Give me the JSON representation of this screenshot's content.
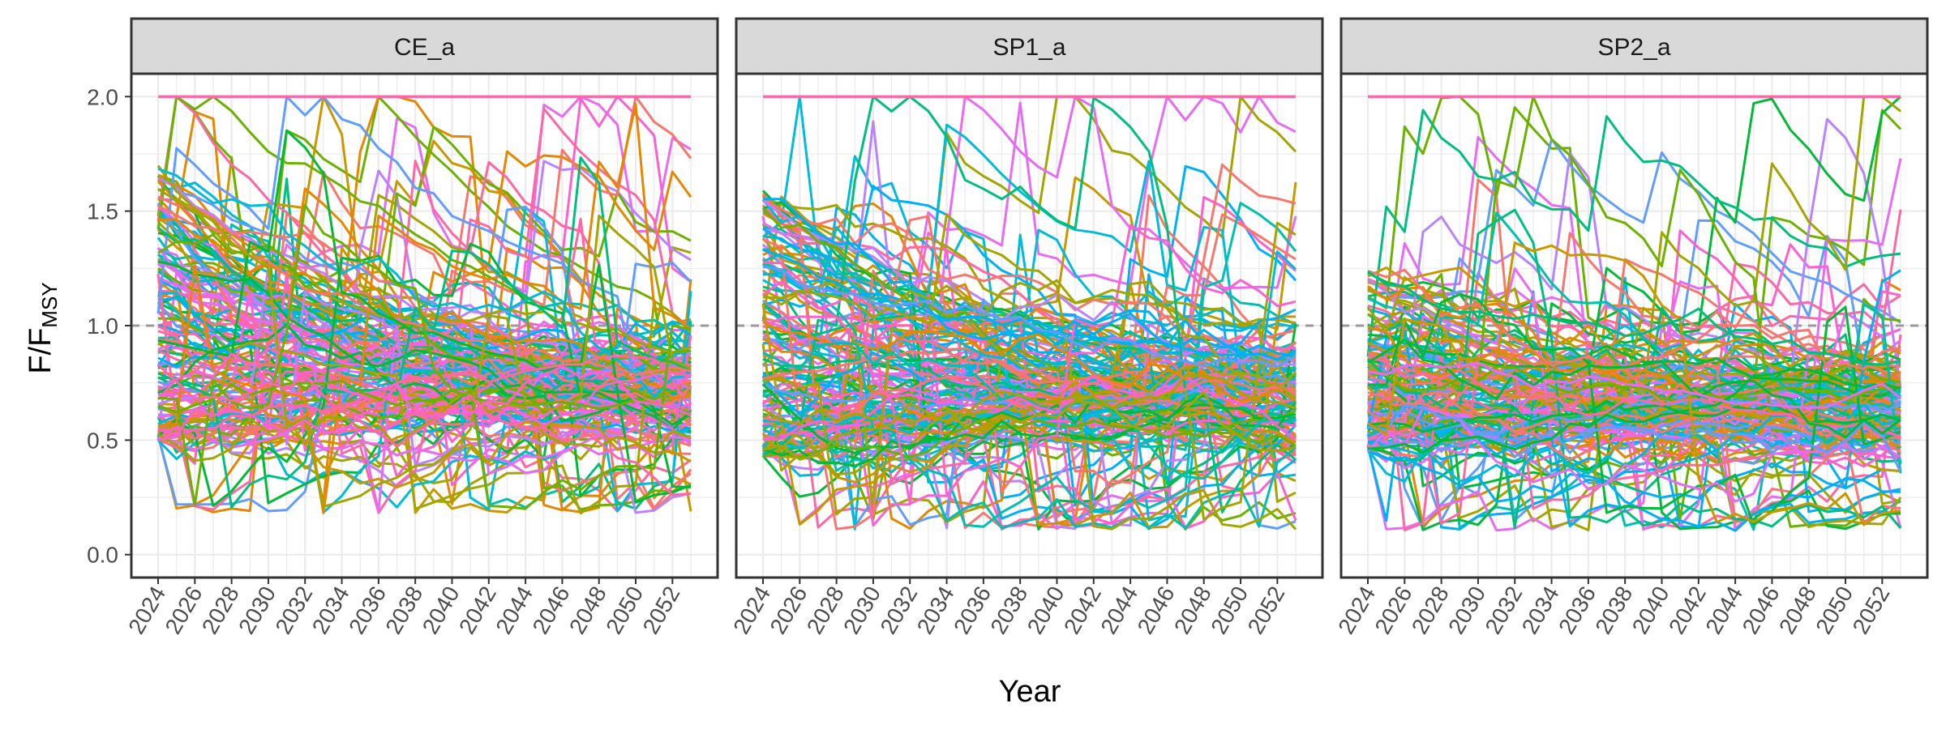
{
  "chart_data": {
    "type": "line",
    "facet_variable": "scenario",
    "facets": [
      "CE_a",
      "SP1_a",
      "SP2_a"
    ],
    "xlabel": "Year",
    "ylabel_main": "F/F",
    "ylabel_sub": "MSY",
    "x_range": [
      2024,
      2053
    ],
    "ylim": [
      -0.1,
      2.1
    ],
    "x_ticks": [
      2024,
      2026,
      2028,
      2030,
      2032,
      2034,
      2036,
      2038,
      2040,
      2042,
      2044,
      2046,
      2048,
      2050,
      2052
    ],
    "y_ticks": [
      0.0,
      0.5,
      1.0,
      1.5,
      2.0
    ],
    "y_tick_labels": [
      "0.0",
      "0.5",
      "1.0",
      "1.5",
      "2.0"
    ],
    "reference_line": {
      "y": 1.0,
      "style": "dashed",
      "color": "#9a9a9a"
    },
    "grid": true,
    "legend": "none",
    "cap_value": 2.0,
    "palette": [
      "#F8766D",
      "#E58700",
      "#C99800",
      "#A3A500",
      "#6BB100",
      "#00BA38",
      "#00BF7D",
      "#00C0AF",
      "#00BCD8",
      "#00B0F6",
      "#619CFF",
      "#B983FF",
      "#E76BF3",
      "#FD61D1",
      "#FF67A4"
    ],
    "series_per_panel_shown": 160,
    "notes_ranges": {
      "CE_a": {
        "start_range": [
          0.5,
          1.7
        ],
        "end_range": [
          0.18,
          2.0
        ],
        "bulk_band": [
          0.4,
          1.0
        ]
      },
      "SP1_a": {
        "start_range": [
          0.43,
          1.6
        ],
        "end_range": [
          0.11,
          2.0
        ],
        "bulk_band": [
          0.3,
          1.1
        ]
      },
      "SP2_a": {
        "start_range": [
          0.45,
          1.25
        ],
        "end_range": [
          0.1,
          2.0
        ],
        "bulk_band": [
          0.35,
          0.95
        ]
      }
    }
  }
}
